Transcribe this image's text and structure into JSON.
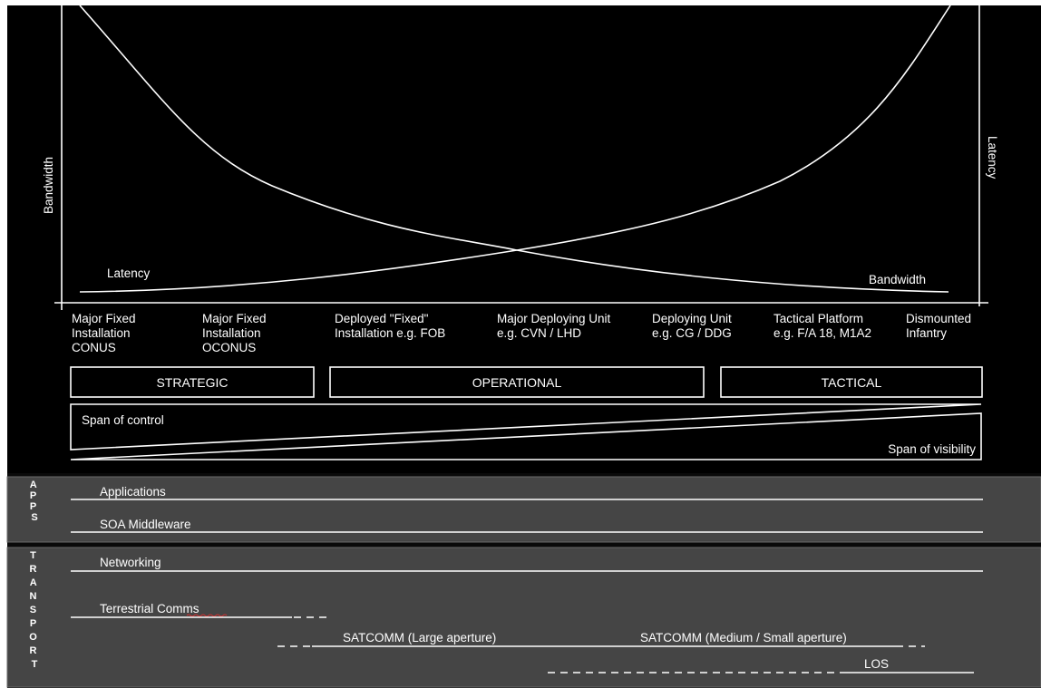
{
  "chart": {
    "y_left_label": "Bandwidth",
    "y_right_label": "Latency",
    "curve_latency_label": "Latency",
    "curve_bandwidth_label": "Bandwidth"
  },
  "deployment": [
    [
      "Major Fixed",
      "Installation",
      "CONUS"
    ],
    [
      "Major Fixed",
      "Installation",
      "OCONUS"
    ],
    [
      "Deployed \"Fixed\"",
      "Installation e.g. FOB"
    ],
    [
      "Major Deploying Unit",
      "e.g. CVN / LHD"
    ],
    [
      "Deploying Unit",
      "e.g. CG / DDG"
    ],
    [
      "Tactical Platform",
      "e.g. F/A 18, M1A2"
    ],
    [
      "Dismounted",
      "Infantry"
    ]
  ],
  "tiers": [
    "STRATEGIC",
    "OPERATIONAL",
    "TACTICAL"
  ],
  "span": {
    "control": "Span of control",
    "visibility": "Span of visibility"
  },
  "apps": {
    "side_label": [
      "A",
      "P",
      "P",
      "S"
    ],
    "layers": [
      "Applications",
      "SOA Middleware"
    ]
  },
  "transport": {
    "side_label": [
      "T",
      "R",
      "A",
      "N",
      "S",
      "P",
      "O",
      "R",
      "T"
    ],
    "networking": "Networking",
    "terrestrial": "Terrestrial Comms",
    "satcom_large": "SATCOMM (Large aperture)",
    "satcom_medium": "SATCOMM (Medium / Small aperture)",
    "los": "LOS"
  },
  "colors": {
    "background": "#000000",
    "panel": "#454545",
    "line": "#ffffff",
    "spell_underline": "#d23030"
  }
}
